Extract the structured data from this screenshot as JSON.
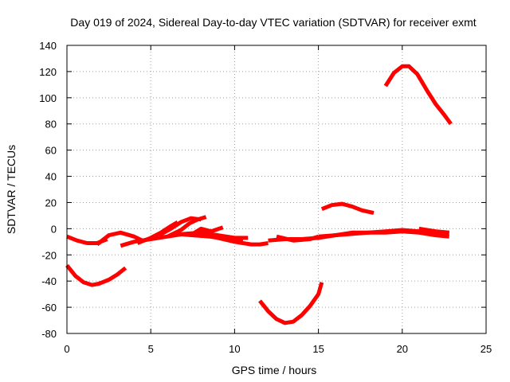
{
  "chart_data": {
    "type": "line",
    "title": "Day 019 of 2024, Sidereal Day-to-day VTEC variation (SDTVAR) for receiver exmt",
    "xlabel": "GPS time / hours",
    "ylabel": "SDTVAR / TECUs",
    "xlim": [
      0,
      25
    ],
    "ylim": [
      -80,
      140
    ],
    "xticks": [
      "0",
      "5",
      "10",
      "15",
      "20",
      "25"
    ],
    "yticks": [
      "140",
      "120",
      "100",
      "80",
      "60",
      "40",
      "20",
      "0",
      "-20",
      "-40",
      "-60",
      "-80"
    ],
    "grid": true,
    "color": "#ff0000",
    "series": [
      {
        "name": "arc-1",
        "x": [
          0.0,
          0.6,
          1.2,
          1.8,
          2.4
        ],
        "y": [
          -6,
          -9,
          -11,
          -11,
          -8
        ]
      },
      {
        "name": "arc-2",
        "x": [
          0.0,
          0.5,
          1.0,
          1.5,
          1.9,
          2.5,
          3.0,
          3.5
        ],
        "y": [
          -28,
          -36,
          -41,
          -43,
          -42,
          -39,
          -35,
          -30
        ]
      },
      {
        "name": "arc-3",
        "x": [
          1.8,
          2.5,
          3.2,
          4.0,
          4.5
        ],
        "y": [
          -12,
          -5,
          -3,
          -6,
          -9
        ]
      },
      {
        "name": "arc-4",
        "x": [
          3.2,
          4.0,
          5.0,
          6.0,
          7.0,
          8.0,
          9.0,
          10.0,
          10.8
        ],
        "y": [
          -13,
          -10,
          -8,
          -6,
          -4,
          -3,
          -5,
          -7,
          -7
        ]
      },
      {
        "name": "arc-5",
        "x": [
          4.2,
          5.0,
          5.6,
          6.2,
          6.6
        ],
        "y": [
          -11,
          -7,
          -3,
          2,
          5
        ]
      },
      {
        "name": "arc-6",
        "x": [
          5.5,
          6.2,
          6.8,
          7.4,
          8.0
        ],
        "y": [
          -5,
          0,
          5,
          8,
          7
        ]
      },
      {
        "name": "arc-7",
        "x": [
          6.0,
          6.8,
          7.3,
          7.8,
          8.3
        ],
        "y": [
          -6,
          -1,
          4,
          7,
          9
        ]
      },
      {
        "name": "arc-8",
        "x": [
          6.5,
          7.5,
          8.5,
          9.5,
          10.5
        ],
        "y": [
          -4,
          -5,
          -6,
          -8,
          -9
        ]
      },
      {
        "name": "arc-9",
        "x": [
          7.5,
          8.0,
          8.6,
          9.3
        ],
        "y": [
          -4,
          0,
          -2,
          1
        ]
      },
      {
        "name": "arc-10",
        "x": [
          8.0,
          9.0,
          10.0,
          10.5,
          11.0,
          11.5,
          12.0
        ],
        "y": [
          -3,
          -7,
          -10,
          -11,
          -12,
          -12,
          -11
        ]
      },
      {
        "name": "arc-11",
        "x": [
          11.5,
          12.0,
          12.5,
          13.0,
          13.5,
          14.0,
          14.5,
          15.0,
          15.2
        ],
        "y": [
          -55,
          -63,
          -69,
          -72,
          -71,
          -66,
          -59,
          -50,
          -41
        ]
      },
      {
        "name": "arc-12",
        "x": [
          12.0,
          13.0,
          14.0,
          15.0,
          16.0,
          17.0,
          18.0,
          19.0,
          20.0,
          21.0,
          22.0,
          22.8
        ],
        "y": [
          -9,
          -8,
          -8,
          -7,
          -5,
          -3,
          -3,
          -2,
          -1,
          -2,
          -3,
          -4
        ]
      },
      {
        "name": "arc-13",
        "x": [
          12.5,
          13.5,
          14.5,
          15.0
        ],
        "y": [
          -6,
          -9,
          -8,
          -6
        ]
      },
      {
        "name": "arc-14",
        "x": [
          15.2,
          15.8,
          16.4,
          17.0,
          17.6,
          18.3
        ],
        "y": [
          15,
          18,
          19,
          17,
          14,
          12
        ]
      },
      {
        "name": "arc-15",
        "x": [
          15.0,
          16.0,
          17.0,
          18.0,
          19.0,
          20.0,
          21.0,
          22.0,
          22.8
        ],
        "y": [
          -6,
          -5,
          -4,
          -3,
          -3,
          -2,
          -3,
          -5,
          -6
        ]
      },
      {
        "name": "arc-16",
        "x": [
          19.0,
          19.5,
          20.0,
          20.4,
          20.9,
          21.5,
          22.0,
          22.5,
          22.9
        ],
        "y": [
          109,
          119,
          124,
          124,
          118,
          105,
          95,
          87,
          80
        ]
      },
      {
        "name": "arc-17",
        "x": [
          21.0,
          22.0,
          22.8
        ],
        "y": [
          0,
          -2,
          -3
        ]
      }
    ]
  }
}
